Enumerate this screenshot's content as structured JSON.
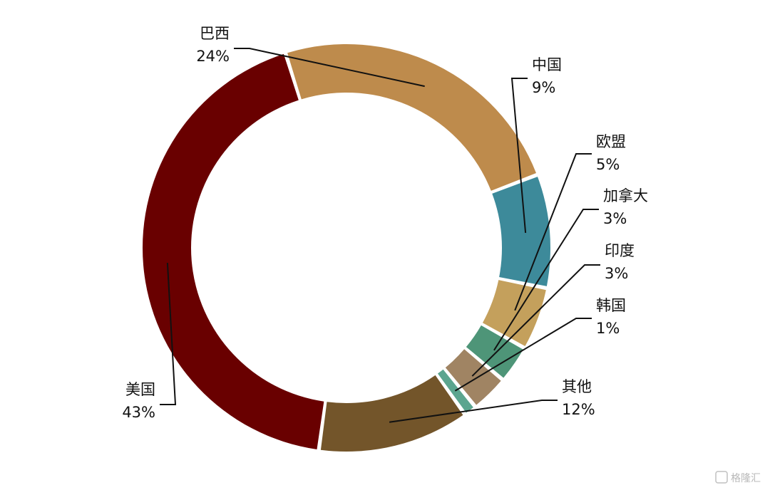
{
  "chart_data": {
    "type": "pie",
    "donut": true,
    "categories": [
      "中国",
      "欧盟",
      "加拿大",
      "印度",
      "韩国",
      "其他",
      "美国",
      "巴西"
    ],
    "labels": [
      "中国",
      "欧盟",
      "加拿大",
      "印度",
      "韩国",
      "其他",
      "美国",
      "巴西"
    ],
    "values": [
      9,
      5,
      3,
      3,
      1,
      12,
      43,
      24
    ],
    "value_labels": [
      "9%",
      "5%",
      "3%",
      "3%",
      "1%",
      "12%",
      "43%",
      "24%"
    ],
    "colors": [
      "#3d8a9a",
      "#c4a05c",
      "#4e9578",
      "#a08463",
      "#5ba58f",
      "#73552a",
      "#690000",
      "#be8b4c"
    ],
    "title": "",
    "legend": "none",
    "grid": false
  },
  "watermark": {
    "text": "格隆汇",
    "icon": "logo-icon"
  }
}
